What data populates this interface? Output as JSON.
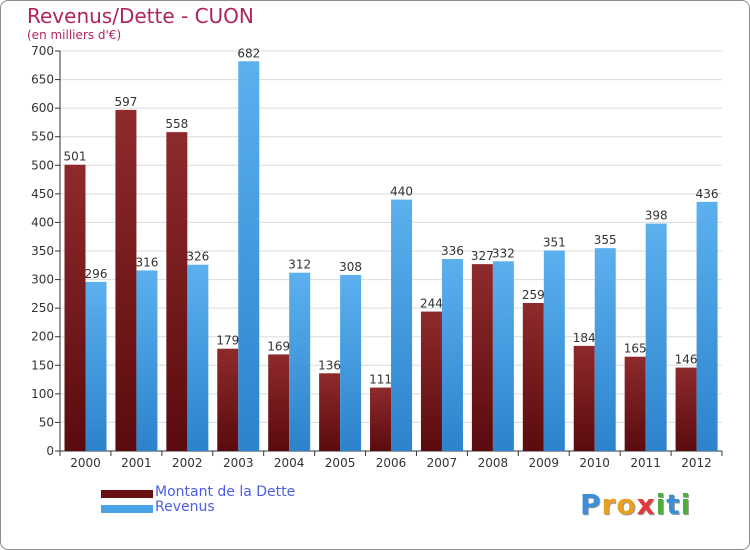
{
  "title": "Revenus/Dette - CUON",
  "subtitle": "(en milliers d'€)",
  "colors": {
    "title": "#b0245e",
    "dette": "#7a1a1d",
    "revenus": "#4aa3e6",
    "legend_text": "#4a5ee6"
  },
  "chart_data": {
    "type": "bar",
    "title": "Revenus/Dette - CUON",
    "ylabel": "(en milliers d'€)",
    "xlabel": "",
    "ylim": [
      0,
      700
    ],
    "yticks": [
      0,
      50,
      100,
      150,
      200,
      250,
      300,
      350,
      400,
      450,
      500,
      550,
      600,
      650,
      700
    ],
    "grid": true,
    "categories": [
      "2000",
      "2001",
      "2002",
      "2003",
      "2004",
      "2005",
      "2006",
      "2007",
      "2008",
      "2009",
      "2010",
      "2011",
      "2012"
    ],
    "series": [
      {
        "name": "Montant de la Dette",
        "values": [
          501,
          597,
          558,
          179,
          169,
          136,
          111,
          244,
          327,
          259,
          184,
          165,
          146
        ]
      },
      {
        "name": "Revenus",
        "values": [
          296,
          316,
          326,
          682,
          312,
          308,
          440,
          336,
          332,
          351,
          355,
          398,
          436
        ]
      }
    ]
  },
  "legend": {
    "items": [
      {
        "label": "Montant de la Dette"
      },
      {
        "label": "Revenus"
      }
    ]
  },
  "logo": {
    "letters": [
      "P",
      "r",
      "o",
      "x",
      "i",
      "t",
      "i"
    ]
  }
}
